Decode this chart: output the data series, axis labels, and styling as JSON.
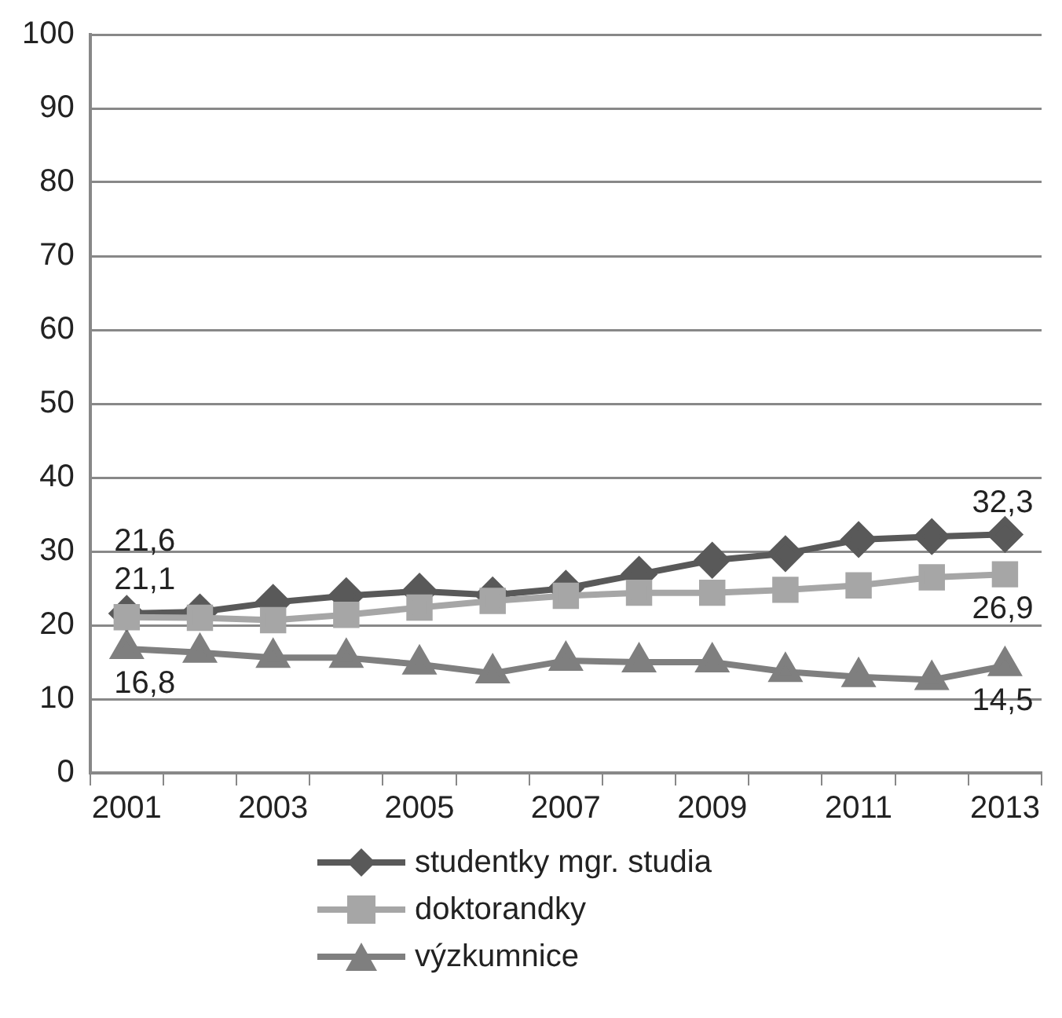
{
  "chart_data": {
    "type": "line",
    "categories": [
      "2001",
      null,
      "2003",
      null,
      "2005",
      null,
      "2007",
      null,
      "2009",
      null,
      "2011",
      null,
      "2013"
    ],
    "series": [
      {
        "name": "studentky mgr. studia",
        "color": "#595959",
        "marker": "diamond",
        "values": [
          21.6,
          21.8,
          23.1,
          24,
          24.6,
          24.1,
          25,
          26.9,
          28.8,
          29.7,
          31.6,
          32,
          32.3
        ],
        "value_labels": [
          "21,6",
          null,
          null,
          null,
          null,
          null,
          null,
          null,
          null,
          null,
          null,
          null,
          "32,3"
        ]
      },
      {
        "name": "doktorandky",
        "color": "#a6a6a6",
        "marker": "square",
        "values": [
          21.1,
          21,
          20.7,
          21.4,
          22.4,
          23.3,
          24,
          24.4,
          24.4,
          24.8,
          25.4,
          26.5,
          26.9
        ],
        "value_labels": [
          "21,1",
          null,
          null,
          null,
          null,
          null,
          null,
          null,
          null,
          null,
          null,
          null,
          "26,9"
        ]
      },
      {
        "name": "výzkumnice",
        "color": "#7f7f7f",
        "marker": "triangle",
        "values": [
          16.8,
          16.3,
          15.6,
          15.6,
          14.7,
          13.5,
          15.2,
          15,
          15,
          13.7,
          13,
          12.6,
          14.5
        ],
        "value_labels": [
          "16,8",
          null,
          null,
          null,
          null,
          null,
          null,
          null,
          null,
          null,
          null,
          null,
          "14,5"
        ]
      }
    ],
    "ylim": [
      0,
      100
    ],
    "yticks": [
      0,
      10,
      20,
      30,
      40,
      50,
      60,
      70,
      80,
      90,
      100
    ],
    "grid": "y",
    "legend": "bottom",
    "line_style": "solid"
  }
}
